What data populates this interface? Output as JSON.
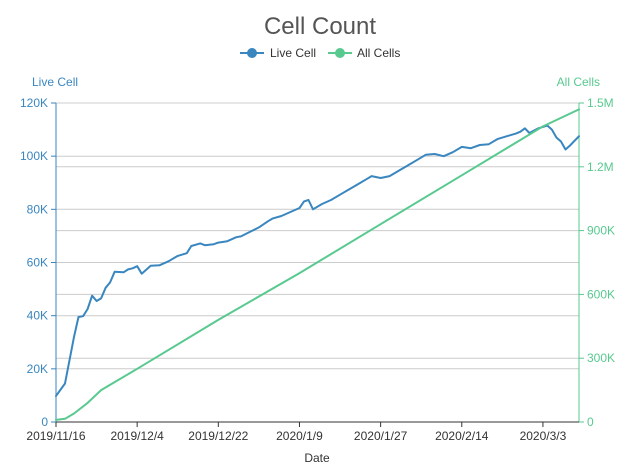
{
  "chart_data": {
    "type": "line",
    "title": "Cell Count",
    "xlabel": "Date",
    "ylabel_left": "Live Cell",
    "ylabel_right": "All Cells",
    "x_start": "2019/11/16",
    "x_end": "2020/3/11",
    "x_ticks": [
      "2019/11/16",
      "2019/12/4",
      "2019/12/22",
      "2020/1/9",
      "2020/1/27",
      "2020/2/14",
      "2020/3/3"
    ],
    "y_left": {
      "min": 0,
      "max": 120000,
      "ticks": [
        0,
        20000,
        40000,
        60000,
        80000,
        100000,
        120000
      ],
      "tick_labels": [
        "0",
        "20K",
        "40K",
        "60K",
        "80K",
        "100K",
        "120K"
      ]
    },
    "y_right": {
      "min": 0,
      "max": 1500000,
      "ticks": [
        0,
        300000,
        600000,
        900000,
        1200000,
        1500000
      ],
      "tick_labels": [
        "0",
        "300K",
        "600K",
        "900K",
        "1.2M",
        "1.5M"
      ]
    },
    "legend": {
      "position": "top-center",
      "items": [
        "Live Cell",
        "All Cells"
      ]
    },
    "grid": true,
    "colors": {
      "live": "#3a86bf",
      "all": "#58c98f",
      "grid": "#cccccc"
    },
    "series": [
      {
        "name": "Live Cell",
        "axis": "left",
        "color": "#3a86bf",
        "points": [
          [
            "2019/11/16",
            9800
          ],
          [
            "2019/11/18",
            14500
          ],
          [
            "2019/11/20",
            32000
          ],
          [
            "2019/11/21",
            39500
          ],
          [
            "2019/11/22",
            39800
          ],
          [
            "2019/11/23",
            42500
          ],
          [
            "2019/11/24",
            47500
          ],
          [
            "2019/11/25",
            45500
          ],
          [
            "2019/11/26",
            46500
          ],
          [
            "2019/11/27",
            50500
          ],
          [
            "2019/11/28",
            52500
          ],
          [
            "2019/11/29",
            56500
          ],
          [
            "2019/12/1",
            56300
          ],
          [
            "2019/12/2",
            57400
          ],
          [
            "2019/12/3",
            57800
          ],
          [
            "2019/12/4",
            58600
          ],
          [
            "2019/12/5",
            55800
          ],
          [
            "2019/12/7",
            58800
          ],
          [
            "2019/12/9",
            59000
          ],
          [
            "2019/12/11",
            60500
          ],
          [
            "2019/12/13",
            62500
          ],
          [
            "2019/12/15",
            63500
          ],
          [
            "2019/12/16",
            66200
          ],
          [
            "2019/12/18",
            67200
          ],
          [
            "2019/12/19",
            66500
          ],
          [
            "2019/12/21",
            66900
          ],
          [
            "2019/12/22",
            67500
          ],
          [
            "2019/12/24",
            68000
          ],
          [
            "2019/12/26",
            69500
          ],
          [
            "2019/12/27",
            69800
          ],
          [
            "2019/12/29",
            71500
          ],
          [
            "2019/12/31",
            73200
          ],
          [
            "2020/1/2",
            75500
          ],
          [
            "2020/1/3",
            76500
          ],
          [
            "2020/1/5",
            77500
          ],
          [
            "2020/1/7",
            79000
          ],
          [
            "2020/1/9",
            80500
          ],
          [
            "2020/1/10",
            83000
          ],
          [
            "2020/1/11",
            83500
          ],
          [
            "2020/1/12",
            80000
          ],
          [
            "2020/1/14",
            82000
          ],
          [
            "2020/1/16",
            83500
          ],
          [
            "2020/1/18",
            85500
          ],
          [
            "2020/1/20",
            87500
          ],
          [
            "2020/1/22",
            89500
          ],
          [
            "2020/1/24",
            91500
          ],
          [
            "2020/1/25",
            92500
          ],
          [
            "2020/1/27",
            91800
          ],
          [
            "2020/1/29",
            92500
          ],
          [
            "2020/1/31",
            94500
          ],
          [
            "2020/2/2",
            96500
          ],
          [
            "2020/2/4",
            98500
          ],
          [
            "2020/2/6",
            100500
          ],
          [
            "2020/2/8",
            100800
          ],
          [
            "2020/2/10",
            100000
          ],
          [
            "2020/2/12",
            101500
          ],
          [
            "2020/2/14",
            103500
          ],
          [
            "2020/2/16",
            103000
          ],
          [
            "2020/2/18",
            104200
          ],
          [
            "2020/2/20",
            104500
          ],
          [
            "2020/2/22",
            106500
          ],
          [
            "2020/2/24",
            107500
          ],
          [
            "2020/2/26",
            108500
          ],
          [
            "2020/2/27",
            109200
          ],
          [
            "2020/2/28",
            110500
          ],
          [
            "2020/2/29",
            108700
          ],
          [
            "2020/3/2",
            110500
          ],
          [
            "2020/3/3",
            111000
          ],
          [
            "2020/3/4",
            111500
          ],
          [
            "2020/3/5",
            110000
          ],
          [
            "2020/3/6",
            107000
          ],
          [
            "2020/3/7",
            105500
          ],
          [
            "2020/3/8",
            102500
          ],
          [
            "2020/3/9",
            104000
          ],
          [
            "2020/3/11",
            107500
          ]
        ]
      },
      {
        "name": "All Cells",
        "axis": "right",
        "color": "#58c98f",
        "points": [
          [
            "2019/11/16",
            10000
          ],
          [
            "2019/11/18",
            15000
          ],
          [
            "2019/11/20",
            40000
          ],
          [
            "2019/11/23",
            90000
          ],
          [
            "2019/11/26",
            150000
          ],
          [
            "2019/12/4",
            250000
          ],
          [
            "2019/12/22",
            480000
          ],
          [
            "2020/1/9",
            700000
          ],
          [
            "2020/1/27",
            930000
          ],
          [
            "2020/2/14",
            1160000
          ],
          [
            "2020/3/3",
            1390000
          ],
          [
            "2020/3/11",
            1470000
          ]
        ]
      }
    ]
  }
}
